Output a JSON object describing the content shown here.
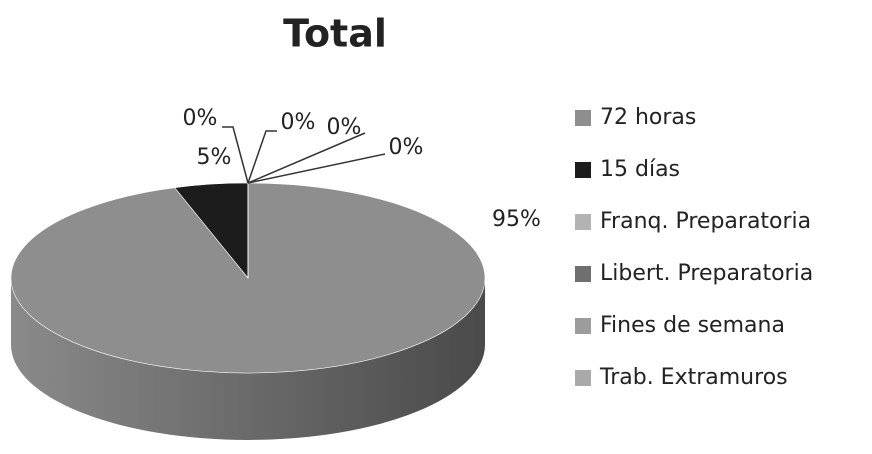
{
  "chart_data": {
    "type": "pie",
    "title": "Total",
    "categories": [
      "72 horas",
      "15 días",
      "Franq. Preparatoria",
      "Libert. Preparatoria",
      "Fines de semana",
      "Trab. Extramuros"
    ],
    "values": [
      95,
      5,
      0,
      0,
      0,
      0
    ],
    "value_labels": [
      "95%",
      "5%",
      "0%",
      "0%",
      "0%",
      "0%"
    ],
    "colors": [
      "#8e8e8e",
      "#1c1c1c",
      "#b3b3b3",
      "#6f6f6f",
      "#9c9c9c",
      "#a9a9a9"
    ],
    "legend": "right"
  }
}
